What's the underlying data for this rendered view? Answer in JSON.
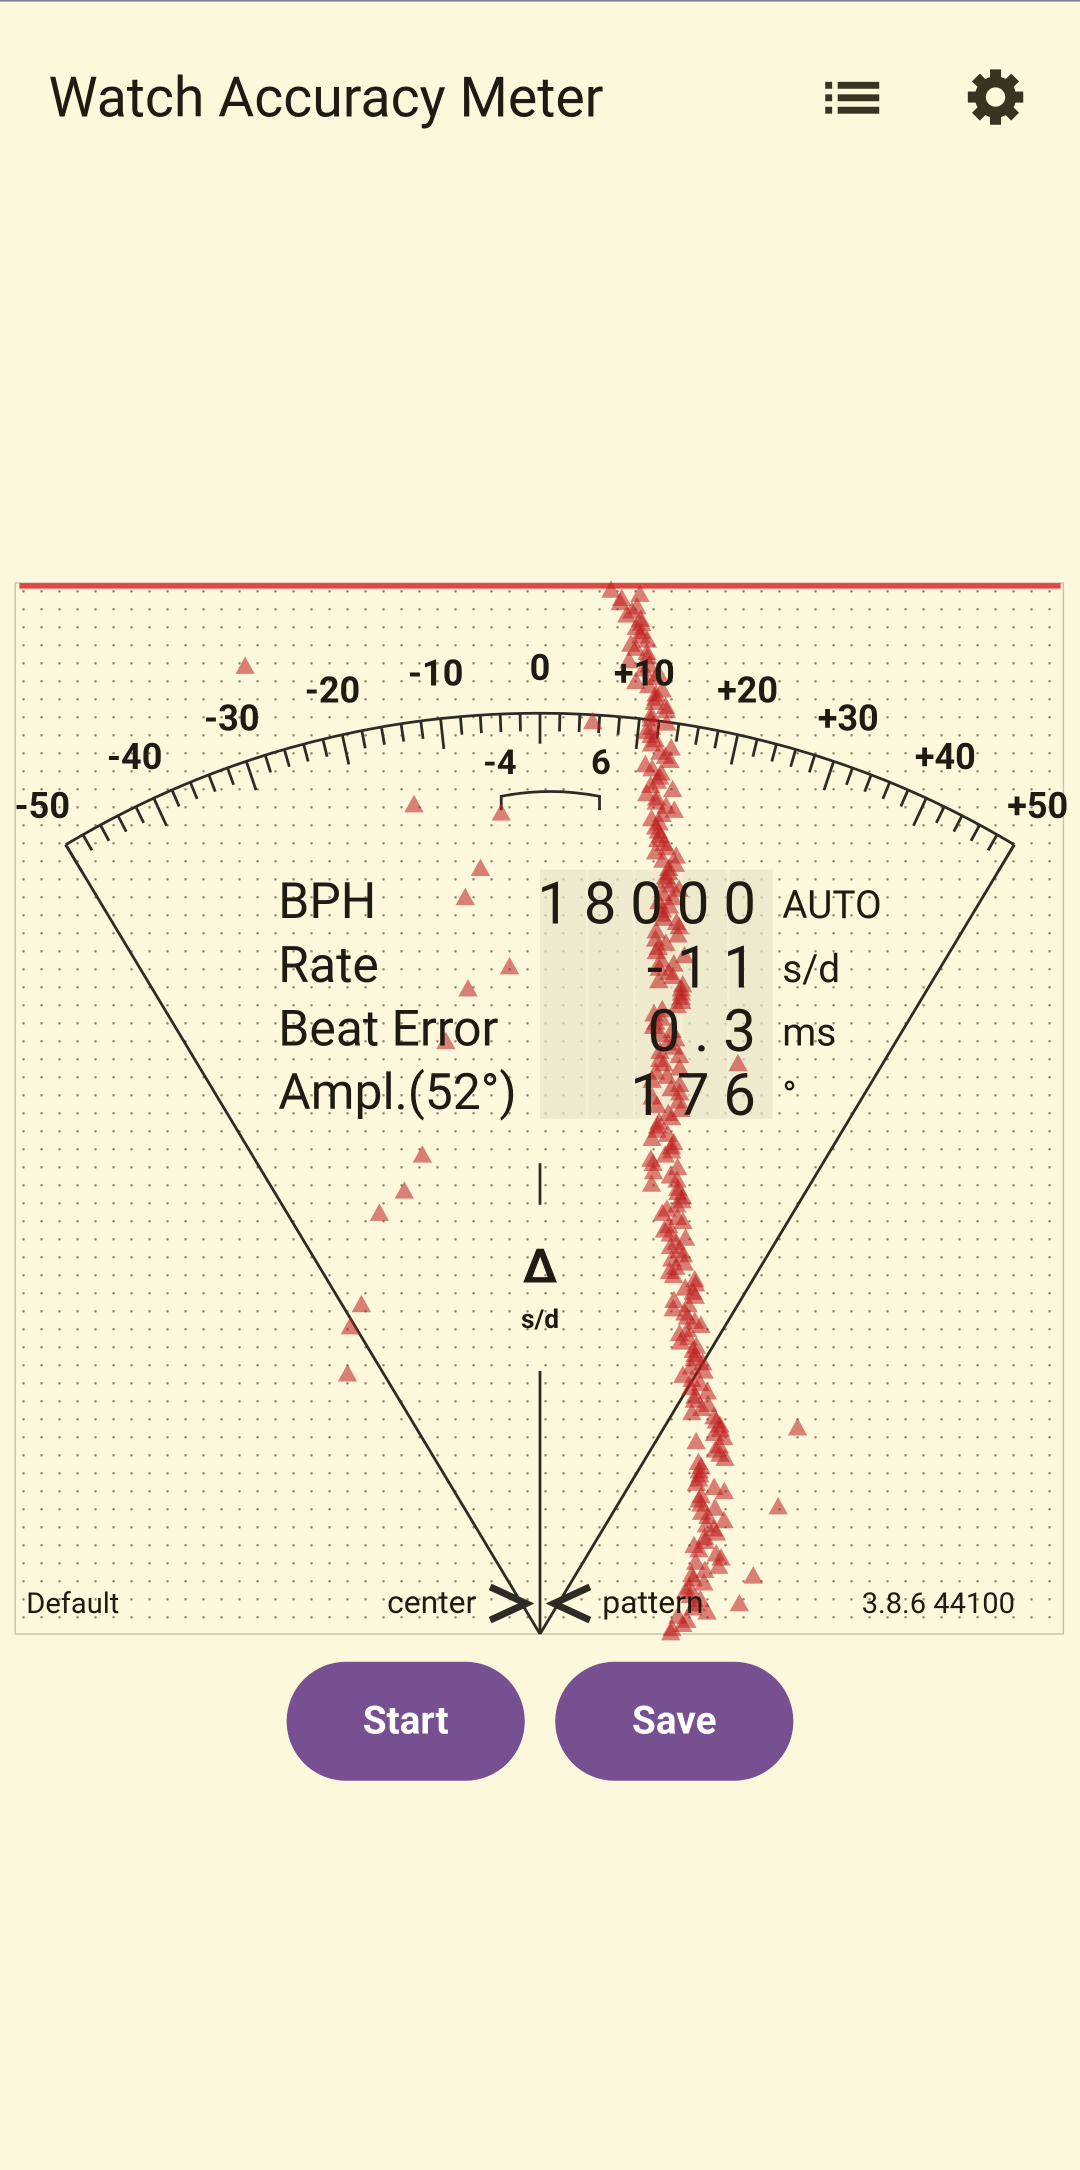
{
  "app_bar": {
    "title": "Watch Accuracy Meter"
  },
  "dial": {
    "scale_labels": [
      "-50",
      "-40",
      "-30",
      "-20",
      "-10",
      "0",
      "+10",
      "+20",
      "+30",
      "+40",
      "+50"
    ],
    "inner_labels": [
      "-4",
      "6"
    ],
    "delta": "Δ",
    "delta_unit": "s/d"
  },
  "readout": {
    "rows": [
      {
        "label": "BPH",
        "value": "18000",
        "unit": "AUTO"
      },
      {
        "label": "Rate",
        "value": "-11",
        "unit": "s/d"
      },
      {
        "label": "Beat Error",
        "value": "0.3",
        "unit": "ms"
      },
      {
        "label": "Ampl.(52°)",
        "value": "176",
        "unit": "°"
      }
    ]
  },
  "footer": {
    "left": "Default",
    "center_left": "center",
    "center_right": "pattern",
    "right": "3.8.6 44100"
  },
  "buttons": [
    "Start",
    "Save"
  ]
}
